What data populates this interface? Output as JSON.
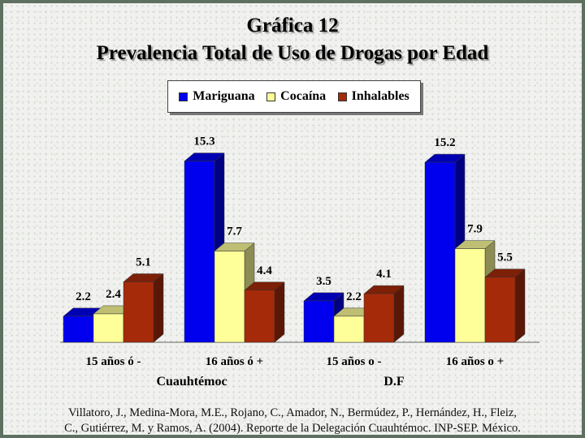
{
  "title_line1": "Gráfica 12",
  "title_line2": "Prevalencia Total de Uso de Drogas por Edad",
  "source_line1": "Villatoro, J., Medina-Mora, M.E., Rojano, C., Amador, N., Bermúdez, P., Hernández, H., Fleiz,",
  "source_line2": "C., Gutiérrez, M. y Ramos, A. (2004). Reporte de la Delegación Cuauhtémoc. INP-SEP. México.",
  "legend": [
    {
      "label": "Mariguana",
      "color": "#0000ee"
    },
    {
      "label": "Cocaína",
      "color": "#ffff99"
    },
    {
      "label": "Inhalables",
      "color": "#a52a0a"
    }
  ],
  "chart_data": {
    "type": "bar",
    "title": "Gráfica 12 Prevalencia Total de Uso de Drogas por Edad",
    "categories": [
      "15 años ó -",
      "16 años ó +",
      "15 años o -",
      "16 años o +"
    ],
    "groups": [
      {
        "label": "Cuauhtémoc",
        "categories": [
          "15 años ó -",
          "16 años ó +"
        ]
      },
      {
        "label": "D.F",
        "categories": [
          "15 años o -",
          "16 años o +"
        ]
      }
    ],
    "series": [
      {
        "name": "Mariguana",
        "values": [
          2.2,
          15.3,
          3.5,
          15.2
        ],
        "labels": [
          "2.2",
          "15.3",
          "3.5",
          "15.2"
        ],
        "color": "#0000ee"
      },
      {
        "name": "Cocaína",
        "values": [
          2.4,
          7.7,
          2.2,
          7.9
        ],
        "labels": [
          "2.4",
          "7.7",
          "2.2",
          "7.9"
        ],
        "color": "#ffff99"
      },
      {
        "name": "Inhalables",
        "values": [
          5.1,
          4.4,
          4.1,
          5.5
        ],
        "labels": [
          "5.1",
          "4.4",
          "4.1",
          "5.5"
        ],
        "color": "#a52a0a"
      }
    ],
    "ylim": [
      0,
      16
    ],
    "grid": false,
    "legend_position": "top"
  }
}
